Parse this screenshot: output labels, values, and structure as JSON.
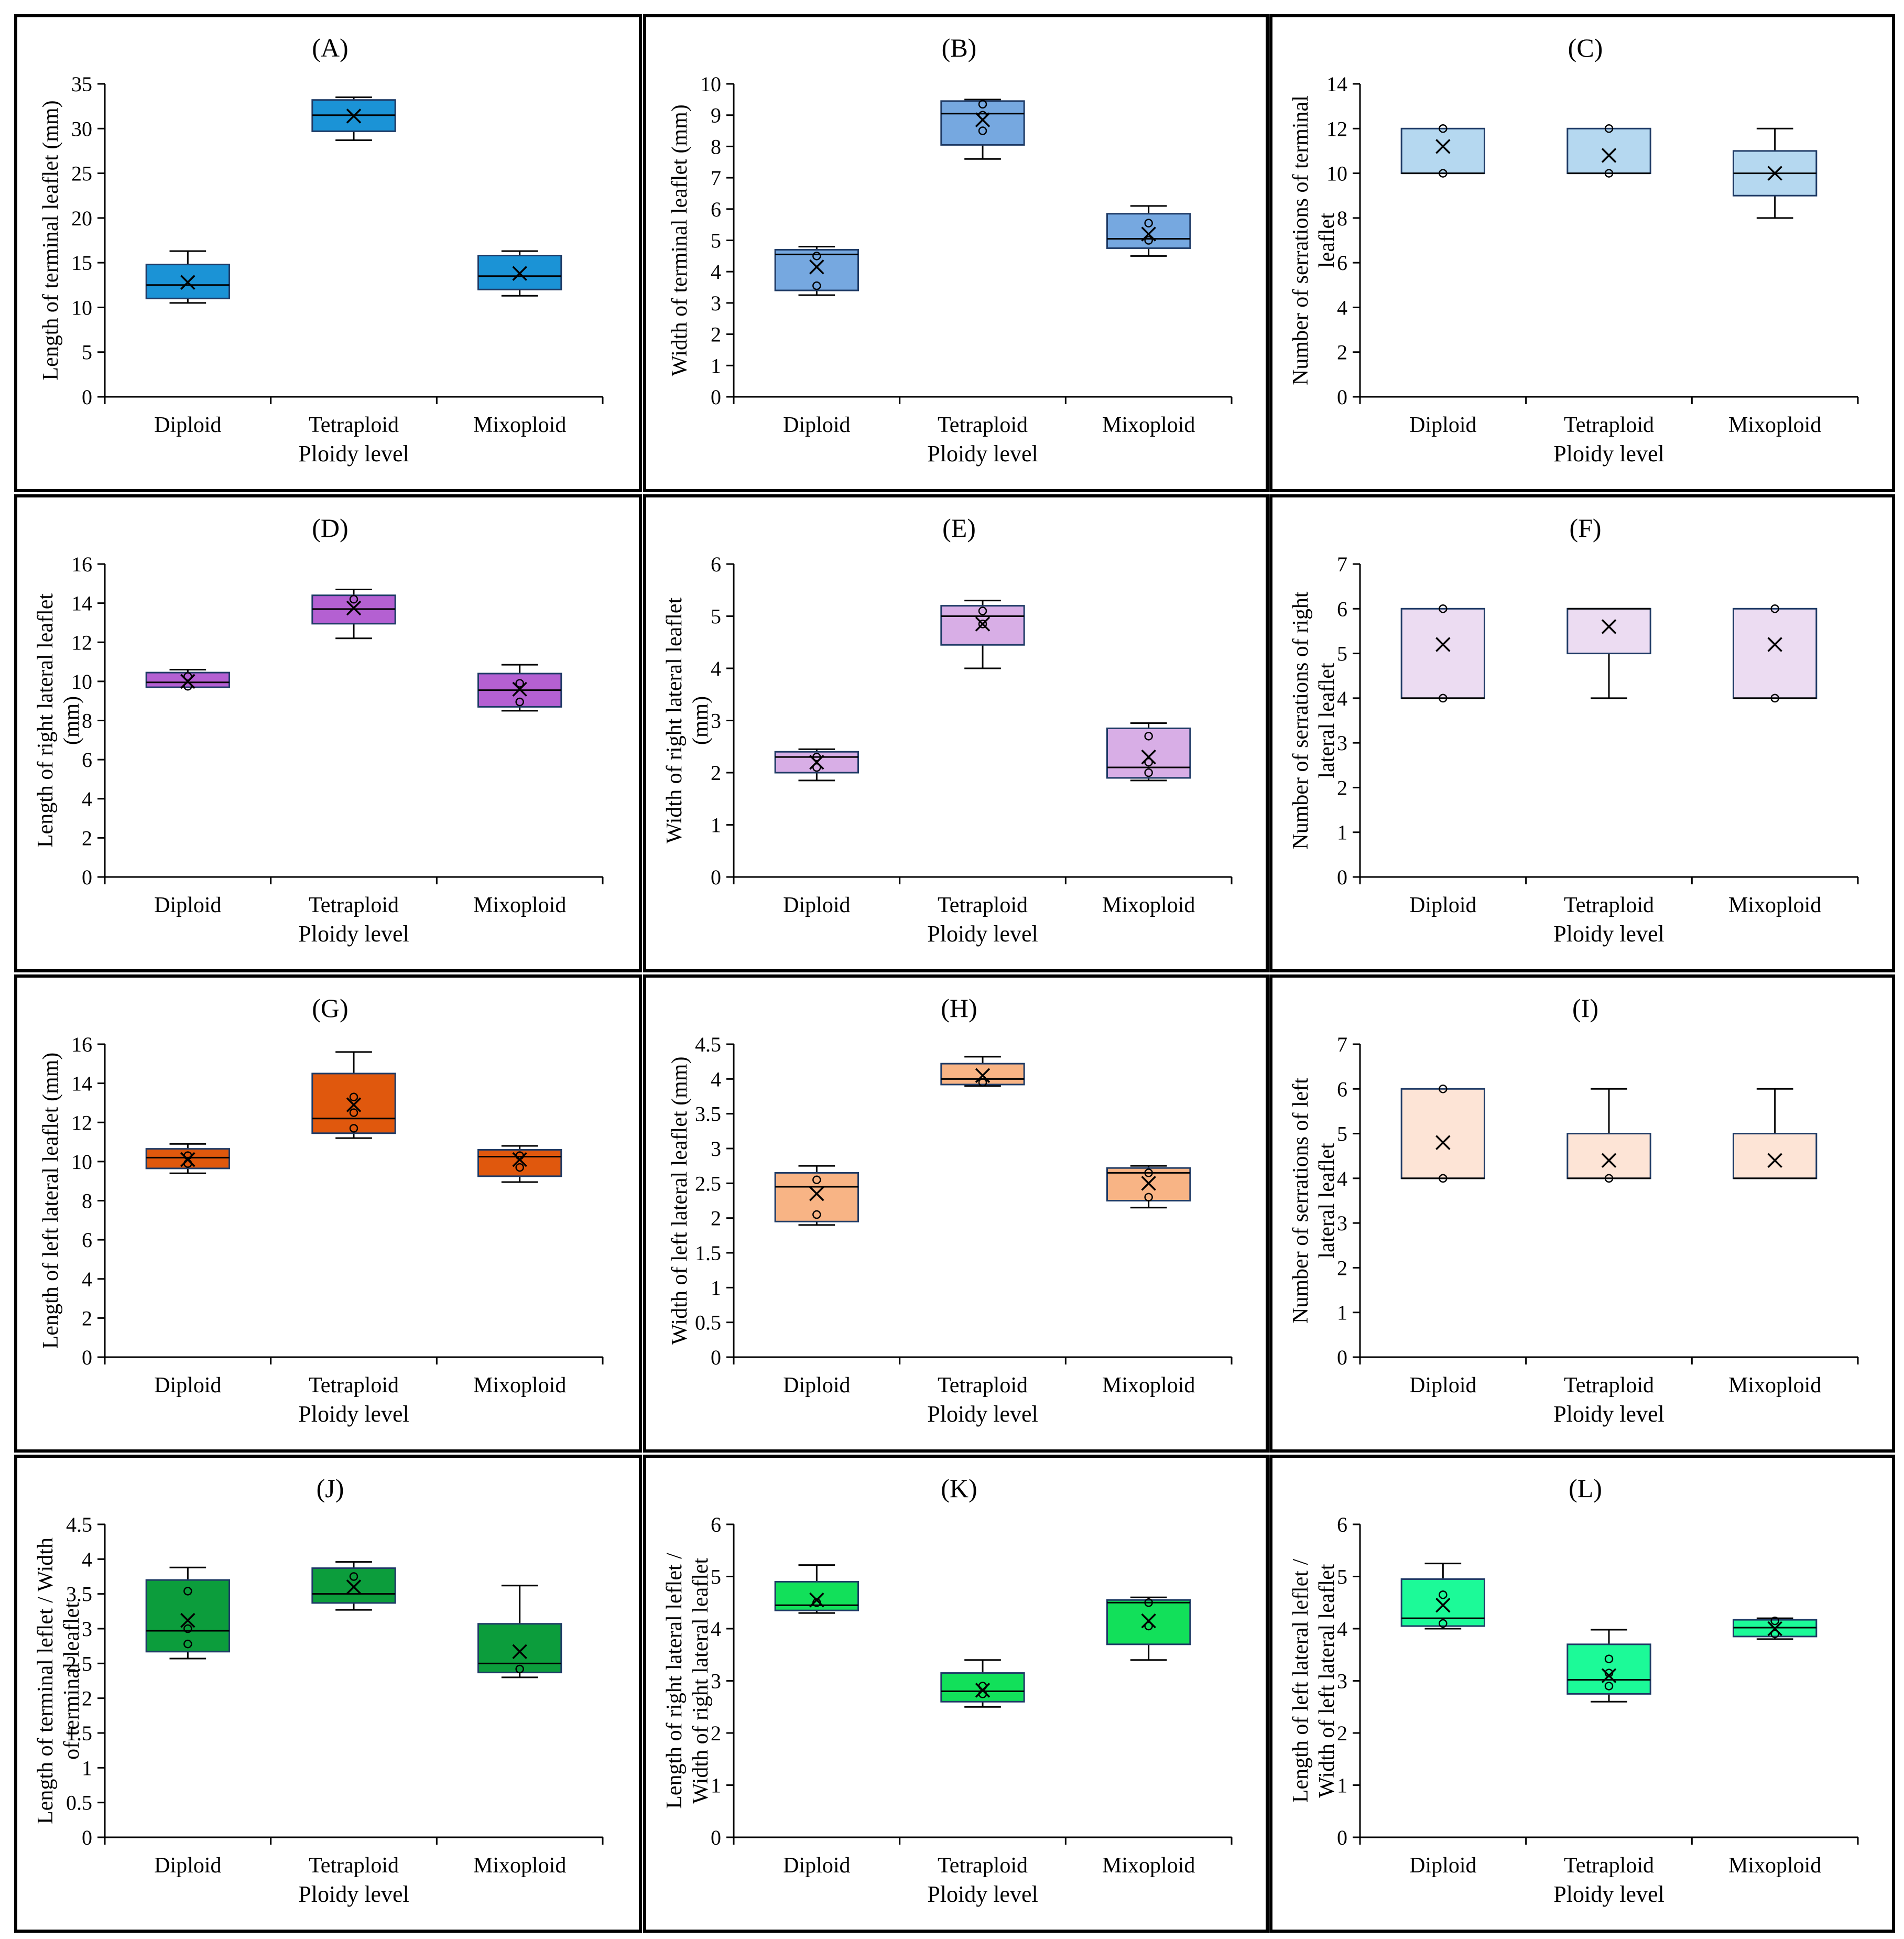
{
  "figure": {
    "x_axis_label": "Ploidy level",
    "categories": [
      "Diploid",
      "Tetraploid",
      "Mixoploid"
    ]
  },
  "chart_data": [
    {
      "type": "box",
      "panel": "(A)",
      "ylabel": [
        "Length of terminal leaflet (mm)"
      ],
      "ylim": [
        0,
        35
      ],
      "yticks": [
        0,
        5,
        10,
        15,
        20,
        25,
        30,
        35
      ],
      "color": "#1b93d6",
      "xlabel": "Ploidy level",
      "categories": [
        "Diploid",
        "Tetraploid",
        "Mixoploid"
      ],
      "boxes": [
        {
          "min": 10.5,
          "q1": 11.0,
          "median": 12.5,
          "q3": 14.8,
          "max": 16.3,
          "mean": 12.8,
          "points": []
        },
        {
          "min": 28.7,
          "q1": 29.7,
          "median": 31.5,
          "q3": 33.2,
          "max": 33.5,
          "mean": 31.4,
          "points": []
        },
        {
          "min": 11.3,
          "q1": 12.0,
          "median": 13.5,
          "q3": 15.8,
          "max": 16.3,
          "mean": 13.8,
          "points": []
        }
      ]
    },
    {
      "type": "box",
      "panel": "(B)",
      "ylabel": [
        "Width of terminal leaflet (mm)"
      ],
      "ylim": [
        0,
        10
      ],
      "yticks": [
        0,
        1,
        2,
        3,
        4,
        5,
        6,
        7,
        8,
        9,
        10
      ],
      "color": "#76a8e0",
      "xlabel": "Ploidy level",
      "categories": [
        "Diploid",
        "Tetraploid",
        "Mixoploid"
      ],
      "boxes": [
        {
          "min": 3.25,
          "q1": 3.4,
          "median": 4.55,
          "q3": 4.7,
          "max": 4.8,
          "mean": 4.15,
          "points": [
            3.55,
            4.5
          ]
        },
        {
          "min": 7.6,
          "q1": 8.05,
          "median": 9.05,
          "q3": 9.45,
          "max": 9.5,
          "mean": 8.85,
          "points": [
            8.5,
            9.0,
            9.35
          ]
        },
        {
          "min": 4.5,
          "q1": 4.75,
          "median": 5.05,
          "q3": 5.85,
          "max": 6.1,
          "mean": 5.2,
          "points": [
            5.0,
            5.55
          ]
        }
      ]
    },
    {
      "type": "box",
      "panel": "(C)",
      "ylabel": [
        "Number of serrations of terminal",
        "leaflet"
      ],
      "ylim": [
        0,
        14
      ],
      "yticks": [
        0,
        2,
        4,
        6,
        8,
        10,
        12,
        14
      ],
      "color": "#b5d8f0",
      "xlabel": "Ploidy level",
      "categories": [
        "Diploid",
        "Tetraploid",
        "Mixoploid"
      ],
      "boxes": [
        {
          "min": 10,
          "q1": 10,
          "median": 10,
          "q3": 12,
          "max": 12,
          "mean": 11.2,
          "points": [
            10,
            12
          ]
        },
        {
          "min": 10,
          "q1": 10,
          "median": 10,
          "q3": 12,
          "max": 12,
          "mean": 10.8,
          "points": [
            10,
            12
          ]
        },
        {
          "min": 8,
          "q1": 9,
          "median": 10,
          "q3": 11,
          "max": 12,
          "mean": 10,
          "points": []
        }
      ]
    },
    {
      "type": "box",
      "panel": "(D)",
      "ylabel": [
        "Length of right lateral leaflet",
        "(mm)"
      ],
      "ylim": [
        0,
        16
      ],
      "yticks": [
        0,
        2,
        4,
        6,
        8,
        10,
        12,
        14,
        16
      ],
      "color": "#b460d2",
      "xlabel": "Ploidy level",
      "categories": [
        "Diploid",
        "Tetraploid",
        "Mixoploid"
      ],
      "boxes": [
        {
          "min": 9.7,
          "q1": 9.7,
          "median": 9.95,
          "q3": 10.45,
          "max": 10.6,
          "mean": 10.0,
          "points": [
            9.75,
            10.25
          ]
        },
        {
          "min": 12.2,
          "q1": 12.95,
          "median": 13.7,
          "q3": 14.4,
          "max": 14.7,
          "mean": 13.75,
          "points": [
            14.2
          ]
        },
        {
          "min": 8.5,
          "q1": 8.7,
          "median": 9.55,
          "q3": 10.4,
          "max": 10.85,
          "mean": 9.6,
          "points": [
            8.95,
            9.9
          ]
        }
      ]
    },
    {
      "type": "box",
      "panel": "(E)",
      "ylabel": [
        "Width of right lateral leaflet",
        "(mm)"
      ],
      "ylim": [
        0,
        6
      ],
      "yticks": [
        0,
        1,
        2,
        3,
        4,
        5,
        6
      ],
      "color": "#d8aee6",
      "xlabel": "Ploidy level",
      "categories": [
        "Diploid",
        "Tetraploid",
        "Mixoploid"
      ],
      "boxes": [
        {
          "min": 1.85,
          "q1": 2.0,
          "median": 2.3,
          "q3": 2.4,
          "max": 2.45,
          "mean": 2.2,
          "points": [
            2.1,
            2.3
          ]
        },
        {
          "min": 4.0,
          "q1": 4.45,
          "median": 5.0,
          "q3": 5.2,
          "max": 5.3,
          "mean": 4.85,
          "points": [
            4.85,
            5.1
          ]
        },
        {
          "min": 1.85,
          "q1": 1.9,
          "median": 2.1,
          "q3": 2.85,
          "max": 2.95,
          "mean": 2.3,
          "points": [
            2.0,
            2.2,
            2.7
          ]
        }
      ]
    },
    {
      "type": "box",
      "panel": "(F)",
      "ylabel": [
        "Number of serrations of right",
        "lateral leaflet"
      ],
      "ylim": [
        0,
        7
      ],
      "yticks": [
        0,
        1,
        2,
        3,
        4,
        5,
        6,
        7
      ],
      "color": "#ecdcf2",
      "xlabel": "Ploidy level",
      "categories": [
        "Diploid",
        "Tetraploid",
        "Mixoploid"
      ],
      "boxes": [
        {
          "min": 4,
          "q1": 4,
          "median": 4,
          "q3": 6,
          "max": 6,
          "mean": 5.2,
          "points": [
            4,
            6
          ]
        },
        {
          "min": 4,
          "q1": 5,
          "median": 6,
          "q3": 6,
          "max": 6,
          "mean": 5.6,
          "points": []
        },
        {
          "min": 4,
          "q1": 4,
          "median": 4,
          "q3": 6,
          "max": 6,
          "mean": 5.2,
          "points": [
            4,
            6
          ]
        }
      ]
    },
    {
      "type": "box",
      "panel": "(G)",
      "ylabel": [
        "Length of left lateral leaflet (mm)"
      ],
      "ylim": [
        0,
        16
      ],
      "yticks": [
        0,
        2,
        4,
        6,
        8,
        10,
        12,
        14,
        16
      ],
      "color": "#e0580d",
      "xlabel": "Ploidy level",
      "categories": [
        "Diploid",
        "Tetraploid",
        "Mixoploid"
      ],
      "boxes": [
        {
          "min": 9.4,
          "q1": 9.65,
          "median": 10.2,
          "q3": 10.65,
          "max": 10.9,
          "mean": 10.1,
          "points": [
            9.9,
            10.3
          ]
        },
        {
          "min": 11.2,
          "q1": 11.45,
          "median": 12.2,
          "q3": 14.5,
          "max": 15.6,
          "mean": 12.9,
          "points": [
            11.7,
            12.5,
            13.3
          ]
        },
        {
          "min": 8.95,
          "q1": 9.25,
          "median": 10.25,
          "q3": 10.6,
          "max": 10.8,
          "mean": 10.1,
          "points": [
            9.7,
            10.3
          ]
        }
      ]
    },
    {
      "type": "box",
      "panel": "(H)",
      "ylabel": [
        "Width of left lateral leaflet (mm)"
      ],
      "ylim": [
        0,
        4.5
      ],
      "yticks": [
        0,
        0.5,
        1,
        1.5,
        2,
        2.5,
        3,
        3.5,
        4,
        4.5
      ],
      "color": "#f8b485",
      "xlabel": "Ploidy level",
      "categories": [
        "Diploid",
        "Tetraploid",
        "Mixoploid"
      ],
      "boxes": [
        {
          "min": 1.9,
          "q1": 1.95,
          "median": 2.45,
          "q3": 2.65,
          "max": 2.75,
          "mean": 2.35,
          "points": [
            2.05,
            2.55
          ]
        },
        {
          "min": 3.9,
          "q1": 3.92,
          "median": 4.0,
          "q3": 4.22,
          "max": 4.32,
          "mean": 4.05,
          "points": [
            3.95
          ]
        },
        {
          "min": 2.15,
          "q1": 2.25,
          "median": 2.65,
          "q3": 2.72,
          "max": 2.75,
          "mean": 2.5,
          "points": [
            2.3,
            2.65
          ]
        }
      ]
    },
    {
      "type": "box",
      "panel": "(I)",
      "ylabel": [
        "Number of serrations of left",
        "lateral leaflet"
      ],
      "ylim": [
        0,
        7
      ],
      "yticks": [
        0,
        1,
        2,
        3,
        4,
        5,
        6,
        7
      ],
      "color": "#fde4d6",
      "xlabel": "Ploidy level",
      "categories": [
        "Diploid",
        "Tetraploid",
        "Mixoploid"
      ],
      "boxes": [
        {
          "min": 4,
          "q1": 4,
          "median": 4,
          "q3": 6,
          "max": 6,
          "mean": 4.8,
          "points": [
            4,
            6
          ]
        },
        {
          "min": 4,
          "q1": 4,
          "median": 4,
          "q3": 5,
          "max": 6,
          "mean": 4.4,
          "points": [
            4
          ]
        },
        {
          "min": 4,
          "q1": 4,
          "median": 4,
          "q3": 5,
          "max": 6,
          "mean": 4.4,
          "points": []
        }
      ]
    },
    {
      "type": "box",
      "panel": "(J)",
      "ylabel": [
        "Length of terminal leflet / Width",
        "of terminal leaflet"
      ],
      "ylim": [
        0,
        4.5
      ],
      "yticks": [
        0,
        0.5,
        1,
        1.5,
        2,
        2.5,
        3,
        3.5,
        4,
        4.5
      ],
      "color": "#0c9d3c",
      "xlabel": "Ploidy level",
      "categories": [
        "Diploid",
        "Tetraploid",
        "Mixoploid"
      ],
      "boxes": [
        {
          "min": 2.57,
          "q1": 2.67,
          "median": 2.97,
          "q3": 3.7,
          "max": 3.88,
          "mean": 3.12,
          "points": [
            2.78,
            3.0,
            3.54
          ]
        },
        {
          "min": 3.27,
          "q1": 3.37,
          "median": 3.5,
          "q3": 3.87,
          "max": 3.96,
          "mean": 3.6,
          "points": [
            3.75
          ]
        },
        {
          "min": 2.3,
          "q1": 2.37,
          "median": 2.5,
          "q3": 3.07,
          "max": 3.62,
          "mean": 2.67,
          "points": [
            2.42
          ]
        }
      ]
    },
    {
      "type": "box",
      "panel": "(K)",
      "ylabel": [
        "Length of right lateral leflet /",
        "Width of right lateral leaflet"
      ],
      "ylim": [
        0,
        6
      ],
      "yticks": [
        0,
        1,
        2,
        3,
        4,
        5,
        6
      ],
      "color": "#12e05a",
      "xlabel": "Ploidy level",
      "categories": [
        "Diploid",
        "Tetraploid",
        "Mixoploid"
      ],
      "boxes": [
        {
          "min": 4.3,
          "q1": 4.35,
          "median": 4.45,
          "q3": 4.9,
          "max": 5.22,
          "mean": 4.55,
          "points": [
            4.5
          ]
        },
        {
          "min": 2.5,
          "q1": 2.6,
          "median": 2.8,
          "q3": 3.15,
          "max": 3.4,
          "mean": 2.82,
          "points": [
            2.75,
            2.9
          ]
        },
        {
          "min": 3.4,
          "q1": 3.7,
          "median": 4.5,
          "q3": 4.55,
          "max": 4.6,
          "mean": 4.15,
          "points": [
            4.05,
            4.5
          ]
        }
      ]
    },
    {
      "type": "box",
      "panel": "(L)",
      "ylabel": [
        "Length of left lateral leflet /",
        "Width of left lateral leaflet"
      ],
      "ylim": [
        0,
        6
      ],
      "yticks": [
        0,
        1,
        2,
        3,
        4,
        5,
        6
      ],
      "color": "#1cfa98",
      "xlabel": "Ploidy level",
      "categories": [
        "Diploid",
        "Tetraploid",
        "Mixoploid"
      ],
      "boxes": [
        {
          "min": 4.0,
          "q1": 4.05,
          "median": 4.2,
          "q3": 4.95,
          "max": 5.25,
          "mean": 4.45,
          "points": [
            4.1,
            4.65
          ]
        },
        {
          "min": 2.6,
          "q1": 2.75,
          "median": 3.02,
          "q3": 3.7,
          "max": 3.98,
          "mean": 3.1,
          "points": [
            2.9,
            3.15,
            3.42
          ]
        },
        {
          "min": 3.8,
          "q1": 3.85,
          "median": 4.02,
          "q3": 4.17,
          "max": 4.2,
          "mean": 4.0,
          "points": [
            3.9,
            4.15
          ]
        }
      ]
    }
  ]
}
